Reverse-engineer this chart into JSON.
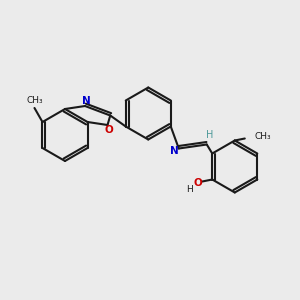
{
  "bg_color": "#ebebeb",
  "bond_color": "#1a1a1a",
  "N_color": "#0000cc",
  "O_color": "#cc0000",
  "H_color": "#4d9999",
  "lw": 1.5,
  "r_hex": 26,
  "r_small": 20,
  "methyl_text": "CH₃",
  "OH_label": "O",
  "H_label": "H",
  "N_label": "N",
  "O_label": "O",
  "H_imine": "H"
}
